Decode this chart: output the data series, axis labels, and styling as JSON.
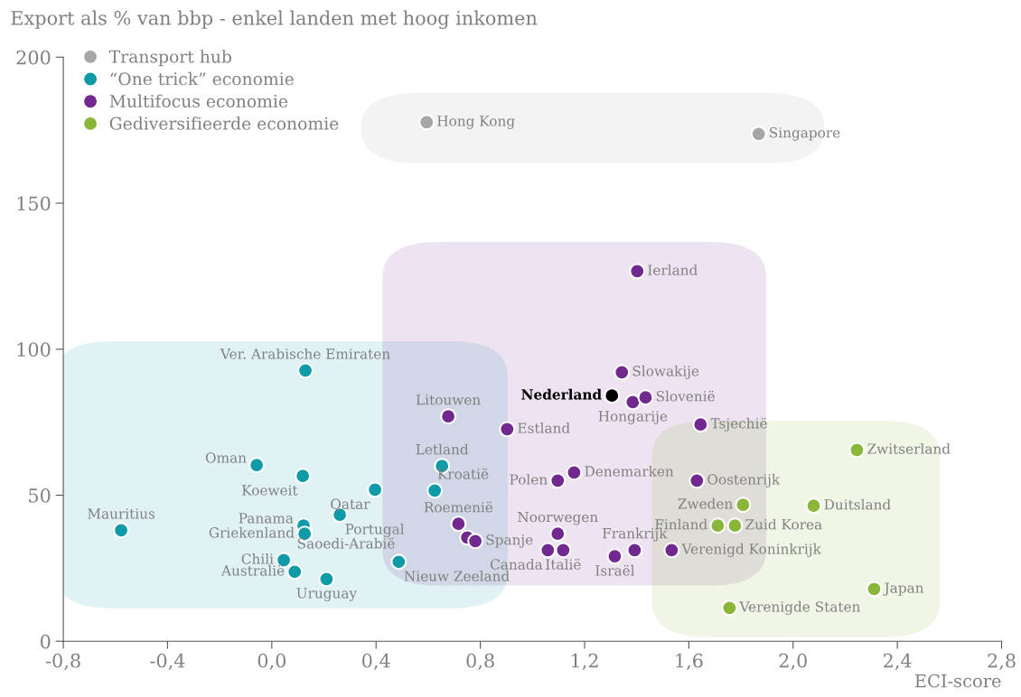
{
  "chart_data": {
    "type": "scatter",
    "ylabel": "Export als % van bbp - enkel landen met hoog inkomen",
    "xlabel": "ECI-score",
    "xlim": [
      -0.8,
      2.8
    ],
    "xticks": [
      {
        "value": -0.8,
        "label": "-0,8"
      },
      {
        "value": -0.4,
        "label": "-0,4"
      },
      {
        "value": 0,
        "label": "0,0"
      },
      {
        "value": 0.4,
        "label": "0,4"
      },
      {
        "value": 0.8,
        "label": "0,8"
      },
      {
        "value": 1.2,
        "label": "1,2"
      },
      {
        "value": 1.6,
        "label": "1,6"
      },
      {
        "value": 2.0,
        "label": "2,0"
      },
      {
        "value": 2.4,
        "label": "2,4"
      },
      {
        "value": 2.8,
        "label": "2,8"
      }
    ],
    "ylim": [
      0,
      200
    ],
    "yticks": [
      0,
      50,
      100,
      150,
      200
    ],
    "grid": false,
    "legend": "top left",
    "marker": "circle",
    "series": [
      {
        "name": "Transport hub",
        "color": "#a6a6a6",
        "x": [
          0.594,
          1.868
        ],
        "values": [
          177.7,
          173.7
        ]
      },
      {
        "name": "“One trick” economie",
        "color": "#0e9aa7",
        "x": [
          0.129,
          -0.058,
          0.119,
          -0.578,
          0.122,
          0.126,
          0.046,
          0.088,
          0.21,
          0.261,
          0.396,
          0.625,
          0.653,
          null,
          0.487
        ],
        "values": [
          92.7,
          60.3,
          56.6,
          38.0,
          39.6,
          36.8,
          27.8,
          23.8,
          21.3,
          43.3,
          51.9,
          51.6,
          60.0,
          null,
          27.2
        ]
      },
      {
        "name": "Multifocus economie",
        "color": "#72298f",
        "x": [
          0.677,
          0.903,
          1.343,
          1.385,
          1.434,
          1.645,
          1.097,
          1.16,
          1.631,
          0.716,
          0.75,
          0.781,
          1.097,
          1.059,
          1.118,
          1.316,
          1.392,
          1.534,
          1.402
        ],
        "values": [
          77.0,
          72.6,
          92.1,
          81.9,
          83.5,
          74.2,
          55.0,
          57.8,
          55.0,
          40.2,
          35.5,
          34.3,
          36.8,
          31.2,
          31.2,
          29.1,
          31.2,
          31.2,
          126.7
        ]
      },
      {
        "name": "Gediversifieerde economie",
        "color": "#8ab73a",
        "x": [
          2.245,
          1.808,
          2.079,
          1.711,
          1.777,
          2.311,
          1.756
        ],
        "values": [
          65.5,
          46.7,
          46.4,
          39.6,
          39.6,
          17.9,
          11.4
        ]
      },
      {
        "color": "#000000",
        "x": [
          1.305
        ],
        "values": [
          84.1
        ]
      }
    ],
    "annotations": [
      {
        "text": "Hong Kong",
        "x": 0.594,
        "y": 177.7
      },
      {
        "text": "Singapore",
        "x": 1.868,
        "y": 173.7
      },
      {
        "text": "Ver. Arabische Emiraten",
        "x": 0.129,
        "y": 92.7
      },
      {
        "text": "Oman",
        "x": -0.058,
        "y": 60.3
      },
      {
        "text": "Koeweit",
        "x": 0.119,
        "y": 56.6
      },
      {
        "text": "Mauritius",
        "x": -0.578,
        "y": 38.0
      },
      {
        "text": "Panama",
        "x": 0.122,
        "y": 39.6
      },
      {
        "text": "Griekenland",
        "x": 0.126,
        "y": 36.8
      },
      {
        "text": "Chili",
        "x": 0.046,
        "y": 27.8
      },
      {
        "text": "Australië",
        "x": 0.088,
        "y": 23.8
      },
      {
        "text": "Uruguay",
        "x": 0.21,
        "y": 21.3
      },
      {
        "text": "Portugal",
        "x": 0.261,
        "y": 43.3
      },
      {
        "text": "Qatar",
        "x": 0.396,
        "y": 51.9
      },
      {
        "text": "Kroatië",
        "x": 0.625,
        "y": 51.6
      },
      {
        "text": "Letland",
        "x": 0.653,
        "y": 60.0
      },
      {
        "text": "Saoedi-Arabië",
        "x": 0.483,
        "y": 27.8
      },
      {
        "text": "Nieuw Zeeland",
        "x": 0.487,
        "y": 27.2
      },
      {
        "text": "Litouwen",
        "x": 0.677,
        "y": 77.0
      },
      {
        "text": "Estland",
        "x": 0.903,
        "y": 72.6
      },
      {
        "text": "Slowakije",
        "x": 1.343,
        "y": 92.1
      },
      {
        "text": "Nederland",
        "x": 1.305,
        "y": 84.1
      },
      {
        "text": "Hongarije",
        "x": 1.385,
        "y": 81.9
      },
      {
        "text": "Slovenië",
        "x": 1.434,
        "y": 83.5
      },
      {
        "text": "Tsjechië",
        "x": 1.645,
        "y": 74.2
      },
      {
        "text": "Polen",
        "x": 1.097,
        "y": 55.0
      },
      {
        "text": "Denemarken",
        "x": 1.16,
        "y": 57.8
      },
      {
        "text": "Oostenrijk",
        "x": 1.631,
        "y": 55.0
      },
      {
        "text": "Roemenië",
        "x": 0.716,
        "y": 40.2
      },
      {
        "text": "Spanje",
        "x": 0.781,
        "y": 34.3
      },
      {
        "text": "Noorwegen",
        "x": 1.097,
        "y": 36.8
      },
      {
        "text": "Canada",
        "x": 1.059,
        "y": 31.2
      },
      {
        "text": "Italië",
        "x": 1.118,
        "y": 31.2
      },
      {
        "text": "Israël",
        "x": 1.316,
        "y": 29.1
      },
      {
        "text": "Frankrijk",
        "x": 1.392,
        "y": 31.2
      },
      {
        "text": "Verenigd Koninkrijk",
        "x": 1.534,
        "y": 31.2
      },
      {
        "text": "Ierland",
        "x": 1.402,
        "y": 126.7
      },
      {
        "text": "Zwitserland",
        "x": 2.245,
        "y": 65.5
      },
      {
        "text": "Zweden",
        "x": 1.808,
        "y": 46.7
      },
      {
        "text": "Duitsland",
        "x": 2.079,
        "y": 46.4
      },
      {
        "text": "Finland",
        "x": 1.711,
        "y": 39.6
      },
      {
        "text": "Zuid Korea",
        "x": 1.777,
        "y": 39.6
      },
      {
        "text": "Japan",
        "x": 2.311,
        "y": 17.9
      },
      {
        "text": "Verenigde Staten",
        "x": 1.756,
        "y": 11.4
      }
    ]
  }
}
